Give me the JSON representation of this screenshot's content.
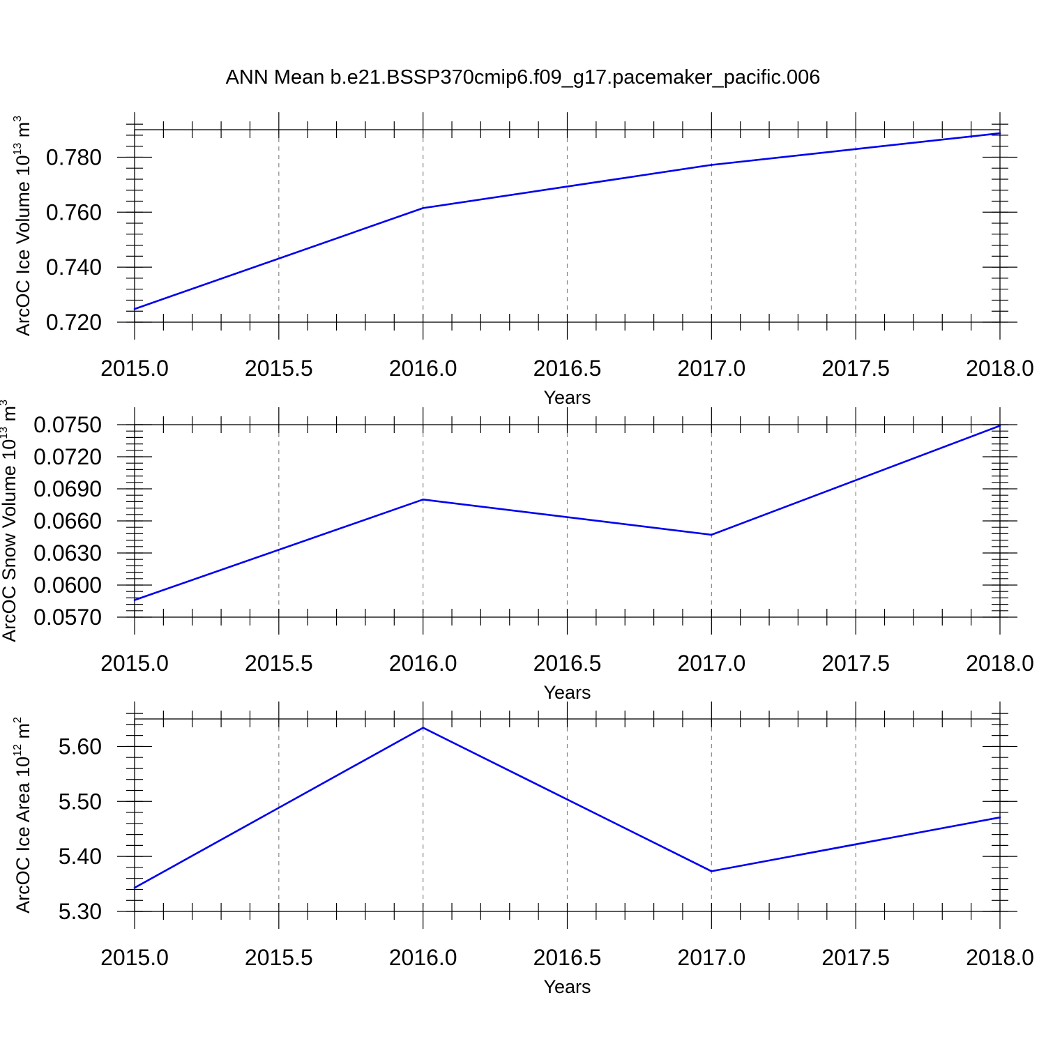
{
  "title": "ANN Mean b.e21.BSSP370cmip6.f09_g17.pacemaker_pacific.006",
  "colors": {
    "line": "#0000ee",
    "grid": "#888888",
    "frame": "#000000"
  },
  "chart_data": [
    {
      "type": "line",
      "xlabel": "Years",
      "ylabel": {
        "prefix": "ArcOC Ice Volume 10",
        "exp": "13",
        "unit": " m",
        "unit_exp": "3"
      },
      "x": [
        2015.0,
        2016.0,
        2017.0,
        2018.0
      ],
      "values": [
        0.7248,
        0.7615,
        0.7772,
        0.7887
      ],
      "xlim": [
        2015.0,
        2018.0
      ],
      "ylim": [
        0.72,
        0.79
      ],
      "xticks": [
        "2015.0",
        "2015.5",
        "2016.0",
        "2016.5",
        "2017.0",
        "2017.5",
        "2018.0"
      ],
      "xtick_values": [
        2015.0,
        2015.5,
        2016.0,
        2016.5,
        2017.0,
        2017.5,
        2018.0
      ],
      "yticks": [
        "0.720",
        "0.740",
        "0.760",
        "0.780"
      ],
      "ytick_values": [
        0.72,
        0.74,
        0.76,
        0.78
      ],
      "yminor_step": 0.004,
      "grid": "x-dashed"
    },
    {
      "type": "line",
      "xlabel": "Years",
      "ylabel": {
        "prefix": "ArcOC Snow Volume 10",
        "exp": "13",
        "unit": " m",
        "unit_exp": "3"
      },
      "x": [
        2015.0,
        2016.0,
        2017.0,
        2018.0
      ],
      "values": [
        0.0586,
        0.068,
        0.0647,
        0.0749
      ],
      "xlim": [
        2015.0,
        2018.0
      ],
      "ylim": [
        0.057,
        0.075
      ],
      "xticks": [
        "2015.0",
        "2015.5",
        "2016.0",
        "2016.5",
        "2017.0",
        "2017.5",
        "2018.0"
      ],
      "xtick_values": [
        2015.0,
        2015.5,
        2016.0,
        2016.5,
        2017.0,
        2017.5,
        2018.0
      ],
      "yticks": [
        "0.0570",
        "0.0600",
        "0.0630",
        "0.0660",
        "0.0690",
        "0.0720",
        "0.0750"
      ],
      "ytick_values": [
        0.057,
        0.06,
        0.063,
        0.066,
        0.069,
        0.072,
        0.075
      ],
      "yminor_step": 0.0006,
      "grid": "x-dashed"
    },
    {
      "type": "line",
      "xlabel": "Years",
      "ylabel": {
        "prefix": "ArcOC Ice Area 10",
        "exp": "12",
        "unit": " m",
        "unit_exp": "2"
      },
      "x": [
        2015.0,
        2016.0,
        2017.0,
        2018.0
      ],
      "values": [
        5.343,
        5.634,
        5.373,
        5.471
      ],
      "xlim": [
        2015.0,
        2018.0
      ],
      "ylim": [
        5.3,
        5.65
      ],
      "xticks": [
        "2015.0",
        "2015.5",
        "2016.0",
        "2016.5",
        "2017.0",
        "2017.5",
        "2018.0"
      ],
      "xtick_values": [
        2015.0,
        2015.5,
        2016.0,
        2016.5,
        2017.0,
        2017.5,
        2018.0
      ],
      "yticks": [
        "5.30",
        "5.40",
        "5.50",
        "5.60"
      ],
      "ytick_values": [
        5.3,
        5.4,
        5.5,
        5.6
      ],
      "yminor_step": 0.02,
      "grid": "x-dashed"
    }
  ]
}
